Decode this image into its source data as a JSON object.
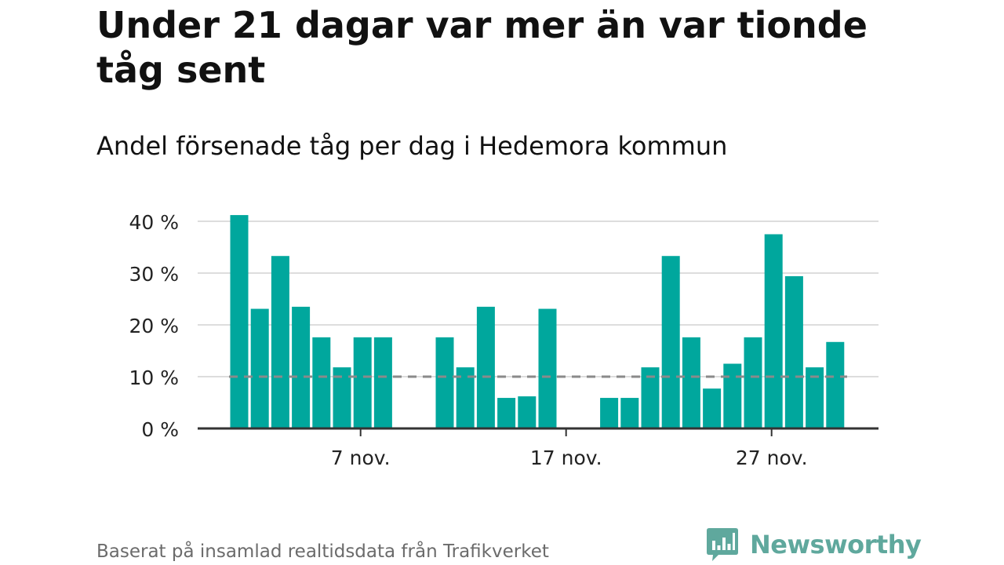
{
  "header": {
    "title": "Under 21 dagar var mer än var tionde tåg sent",
    "subtitle": "Andel försenade tåg per dag i Hedemora kommun"
  },
  "footer": {
    "source": "Baserat på insamlad realtidsdata från Trafikverket",
    "logo_text": "Newsworthy"
  },
  "colors": {
    "bar": "#00a79d",
    "reference_line": "#8a8a8a",
    "grid": "#dddddd",
    "axis": "#333333",
    "logo": "#5fa89d"
  },
  "chart_data": {
    "type": "bar",
    "title": "",
    "xlabel": "",
    "ylabel": "",
    "x": [
      "2019-11-01",
      "2019-11-02",
      "2019-11-03",
      "2019-11-04",
      "2019-11-05",
      "2019-11-06",
      "2019-11-07",
      "2019-11-08",
      "2019-11-09",
      "2019-11-10",
      "2019-11-11",
      "2019-11-12",
      "2019-11-13",
      "2019-11-14",
      "2019-11-15",
      "2019-11-16",
      "2019-11-17",
      "2019-11-18",
      "2019-11-19",
      "2019-11-20",
      "2019-11-21",
      "2019-11-22",
      "2019-11-23",
      "2019-11-24",
      "2019-11-25",
      "2019-11-26",
      "2019-11-27",
      "2019-11-28",
      "2019-11-29",
      "2019-11-30"
    ],
    "values": [
      41.2,
      23.1,
      33.3,
      23.5,
      17.6,
      11.8,
      17.6,
      17.6,
      null,
      null,
      17.6,
      11.8,
      23.5,
      5.9,
      6.2,
      23.1,
      null,
      null,
      5.9,
      5.9,
      11.8,
      33.3,
      17.6,
      7.7,
      12.5,
      17.6,
      37.5,
      29.4,
      11.8,
      16.7
    ],
    "ylim": [
      0,
      40
    ],
    "yticks": [
      0,
      10,
      20,
      30,
      40
    ],
    "ytick_labels": [
      "0 %",
      "10 %",
      "20 %",
      "30 %",
      "40 %"
    ],
    "xtick_labels": [
      {
        "label": "7 nov.",
        "x": "2019-11-07"
      },
      {
        "label": "17 nov.",
        "x": "2019-11-17"
      },
      {
        "label": "27 nov.",
        "x": "2019-11-27"
      }
    ],
    "reference_line": {
      "value": 10,
      "style": "dashed"
    },
    "grid": true,
    "legend": "none"
  }
}
